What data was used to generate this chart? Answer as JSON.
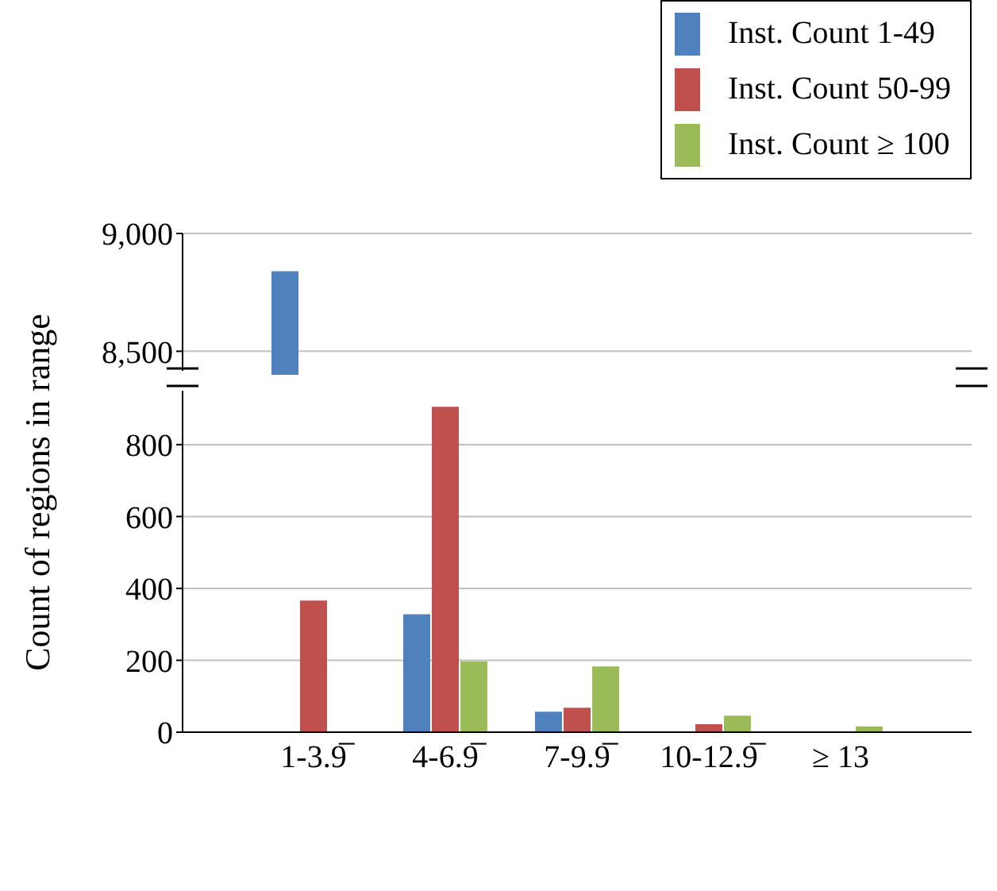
{
  "chart_data": [
    {
      "type": "bar",
      "series": [
        {
          "name": "Inst. Count 1-49",
          "color": "#4f81bd",
          "values": [
            8840,
            null,
            null,
            null,
            null
          ]
        },
        {
          "name": "Inst. Count 50-99",
          "color": "#c0504d",
          "values": [
            null,
            null,
            null,
            null,
            null
          ]
        },
        {
          "name": "Inst. Count ≥ 100",
          "color": "#9bbb59",
          "values": [
            null,
            null,
            null,
            null,
            null
          ]
        }
      ],
      "ylim": [
        8400,
        9000
      ],
      "yticks": [
        {
          "value": 8500,
          "label": "8,500"
        },
        {
          "value": 9000,
          "label": "9,000"
        }
      ],
      "grid": "y",
      "legend": "top right",
      "tick_labels": "y"
    },
    {
      "type": "bar",
      "categories": [
        "1-3.9̅",
        "4-6.9̅",
        "7-9.9̅",
        "10-12.9̅",
        "≥ 13"
      ],
      "ylabel": "Count of regions in range",
      "series": [
        {
          "color": "#4f81bd",
          "values": [
            null,
            328,
            57,
            null,
            null
          ]
        },
        {
          "color": "#c0504d",
          "values": [
            366,
            905,
            68,
            22,
            null
          ]
        },
        {
          "color": "#9bbb59",
          "values": [
            null,
            197,
            183,
            46,
            16
          ]
        }
      ],
      "ylim": [
        0,
        950
      ],
      "yticks": [
        0,
        200,
        400,
        600,
        800
      ],
      "grid": "y"
    }
  ]
}
